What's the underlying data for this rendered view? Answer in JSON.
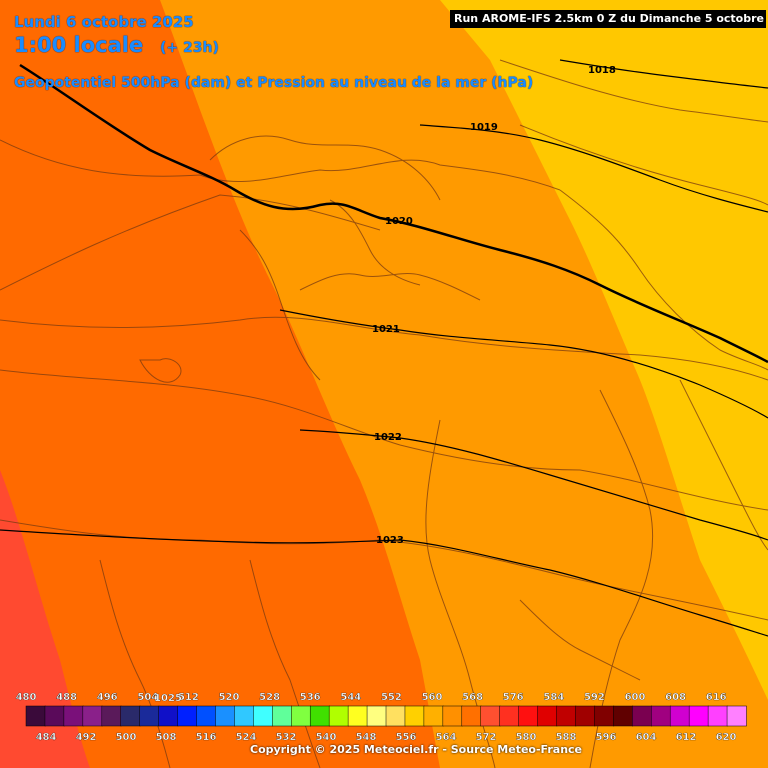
{
  "header": {
    "date": "Lundi 6 octobre 2025",
    "time": "1:00 locale",
    "lead": "(+ 23h)",
    "parameter": "Geopotentiel 500hPa (dam) et Pression au niveau de la mer (hPa)"
  },
  "run_banner": "Run AROME-IFS 2.5km 0 Z du Dimanche 5 octobre 2025",
  "isobars": [
    {
      "label": "1018"
    },
    {
      "label": "1019"
    },
    {
      "label": "1020"
    },
    {
      "label": "1021"
    },
    {
      "label": "1022"
    },
    {
      "label": "1023"
    }
  ],
  "scale": {
    "top_labels": [
      "480",
      "488",
      "496",
      "504",
      "512",
      "520",
      "528",
      "536",
      "544",
      "552",
      "560",
      "568",
      "576",
      "584",
      "592",
      "600",
      "608",
      "616"
    ],
    "bottom_labels": [
      "484",
      "492",
      "500",
      "508",
      "516",
      "524",
      "532",
      "540",
      "548",
      "556",
      "564",
      "572",
      "580",
      "588",
      "596",
      "604",
      "612",
      "620"
    ],
    "overlap_label": "1025",
    "colors": [
      "#3a0a3a",
      "#5a0a5a",
      "#7a107a",
      "#8a208a",
      "#5a1a5a",
      "#2a2a6a",
      "#1a2a9a",
      "#1010c8",
      "#0020ff",
      "#0050ff",
      "#1a90ff",
      "#30c8ff",
      "#40ffff",
      "#60ff9a",
      "#80ff40",
      "#40e000",
      "#b0ff00",
      "#ffff20",
      "#ffff80",
      "#ffe060",
      "#ffd000",
      "#ffb000",
      "#ff9000",
      "#ff7000",
      "#ff5030",
      "#ff3020",
      "#ff1010",
      "#e00000",
      "#c00000",
      "#a00000",
      "#800000",
      "#600000",
      "#7a0050",
      "#a00080",
      "#d000d0",
      "#ff00ff",
      "#ff40ff",
      "#ff80ff"
    ]
  },
  "copyright": "Copyright © 2025 Meteociel.fr - Source Meteo-France"
}
